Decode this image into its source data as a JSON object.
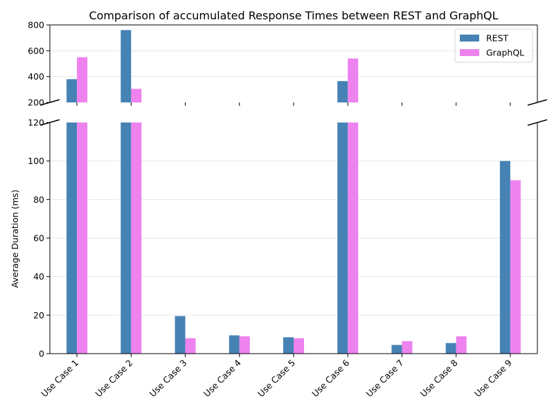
{
  "chart_data": {
    "type": "bar",
    "title": "Comparison of accumulated Response Times between REST and GraphQL",
    "xlabel": "",
    "ylabel": "Average Duration (ms)",
    "categories": [
      "Use Case 1",
      "Use Case 2",
      "Use Case 3",
      "Use Case 4",
      "Use Case 5",
      "Use Case 6",
      "Use Case 7",
      "Use Case 8",
      "Use Case 9"
    ],
    "series": [
      {
        "name": "REST",
        "color": "#4682b4",
        "values": [
          380,
          760,
          19.5,
          9.5,
          8.5,
          365,
          4.5,
          5.5,
          100
        ]
      },
      {
        "name": "GraphQL",
        "color": "#ee82ee",
        "values": [
          550,
          305,
          8,
          9,
          8,
          540,
          6.5,
          9,
          90
        ]
      }
    ],
    "broken_axis": true,
    "upper_ylim": [
      200,
      800
    ],
    "upper_yticks": [
      200,
      400,
      600,
      800
    ],
    "lower_ylim": [
      0,
      120
    ],
    "lower_yticks": [
      0,
      20,
      40,
      60,
      80,
      100,
      120
    ],
    "grid": "horizontal",
    "legend_position": "top-right"
  }
}
